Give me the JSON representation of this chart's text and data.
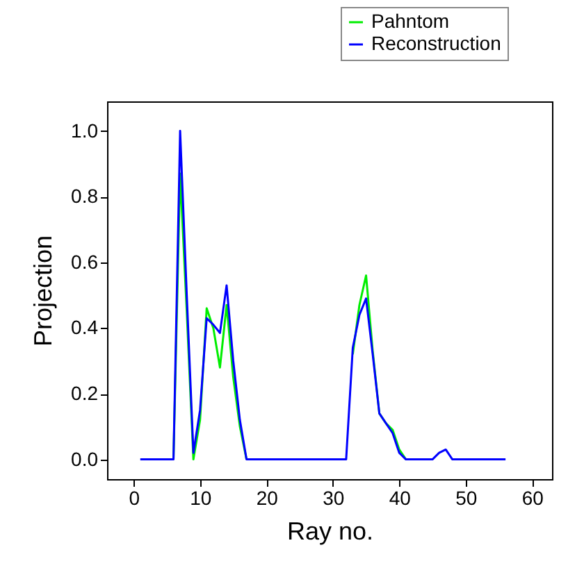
{
  "chart_data": {
    "type": "line",
    "xlabel": "Ray no.",
    "ylabel": "Projection",
    "x": [
      1,
      2,
      3,
      4,
      5,
      6,
      7,
      8,
      9,
      10,
      11,
      12,
      13,
      14,
      15,
      16,
      17,
      18,
      19,
      20,
      21,
      22,
      23,
      24,
      25,
      26,
      27,
      28,
      29,
      30,
      31,
      32,
      33,
      34,
      35,
      36,
      37,
      38,
      39,
      40,
      41,
      42,
      43,
      44,
      45,
      46,
      47,
      48,
      49,
      50,
      51,
      52,
      53,
      54,
      55,
      56
    ],
    "series": [
      {
        "name": "Pahntom",
        "color": "#00ee00",
        "values": [
          null,
          null,
          null,
          null,
          null,
          0,
          0.87,
          0.45,
          0,
          0.12,
          0.46,
          0.4,
          0.28,
          0.47,
          0.25,
          0.1,
          0,
          null,
          null,
          null,
          null,
          null,
          null,
          null,
          null,
          null,
          null,
          null,
          null,
          null,
          null,
          null,
          0.32,
          0.47,
          0.56,
          0.33,
          0.14,
          0.11,
          0.09,
          0.03,
          0,
          null,
          null,
          null,
          null,
          null,
          null,
          null,
          null,
          null,
          null,
          null,
          null,
          null,
          null,
          null
        ]
      },
      {
        "name": "Reconstruction",
        "color": "#0000ff",
        "values": [
          0,
          0,
          0,
          0,
          0,
          0,
          1.0,
          0.5,
          0.02,
          0.15,
          0.43,
          0.41,
          0.385,
          0.53,
          0.3,
          0.12,
          0,
          0,
          0,
          0,
          0,
          0,
          0,
          0,
          0,
          0,
          0,
          0,
          0,
          0,
          0,
          0,
          0.34,
          0.44,
          0.49,
          0.32,
          0.14,
          0.11,
          0.08,
          0.02,
          0,
          0,
          0,
          0,
          0,
          0.02,
          0.03,
          0,
          0,
          0,
          0,
          0,
          0,
          0,
          0,
          0
        ]
      }
    ],
    "xlim": [
      -4,
      63
    ],
    "xticks": [
      0,
      10,
      20,
      30,
      40,
      50,
      60
    ],
    "ylim": [
      -0.06,
      1.09
    ],
    "yticks": [
      {
        "value": 0,
        "label": "0.0"
      },
      {
        "value": 0.2,
        "label": "0.2"
      },
      {
        "value": 0.4,
        "label": "0.4"
      },
      {
        "value": 0.6,
        "label": "0.6"
      },
      {
        "value": 0.8,
        "label": "0.8"
      },
      {
        "value": 1,
        "label": "1.0"
      }
    ],
    "grid": false,
    "legend": "top right",
    "line_style": "solid",
    "marker": "none"
  }
}
